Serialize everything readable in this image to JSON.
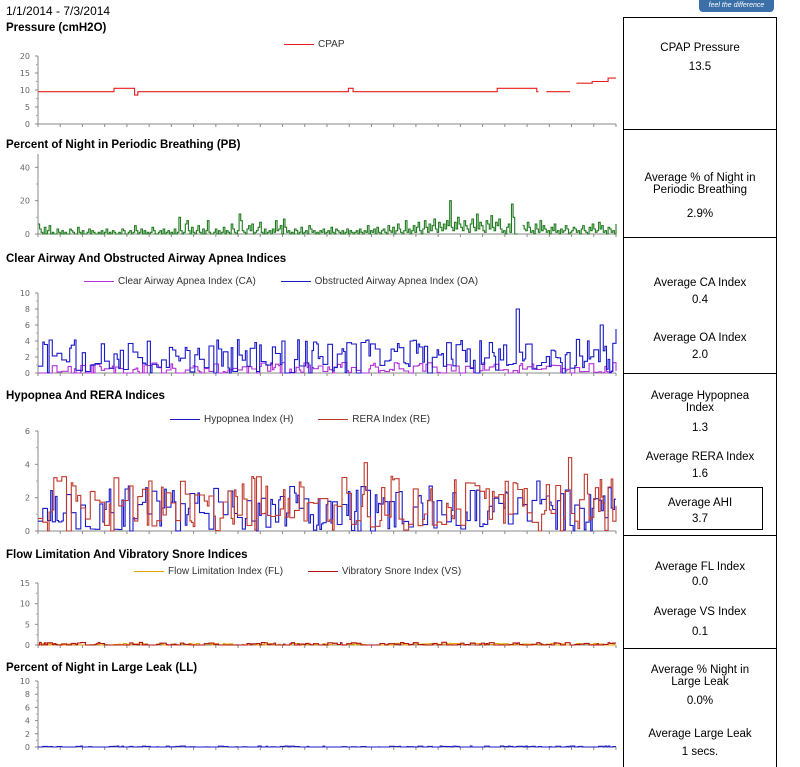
{
  "header": {
    "date_range": "1/1/2014 - 7/3/2014",
    "logo_text": "feel the difference"
  },
  "colors": {
    "cpap": "#e81c1c",
    "pb": "#1e7a1e",
    "ca": "#b430d8",
    "oa": "#1a1ac8",
    "h": "#1a1ac8",
    "re": "#c0392b",
    "fl": "#e8a400",
    "vs": "#b01010",
    "ll": "#1a1ac8"
  },
  "sections": {
    "pressure": {
      "title": "Pressure (cmH2O)",
      "legend": [
        "CPAP"
      ]
    },
    "pb": {
      "title": "Percent of Night in Periodic Breathing (PB)"
    },
    "apnea": {
      "title": "Clear Airway And Obstructed Airway Apnea Indices",
      "legend": [
        "Clear Airway Apnea Index (CA)",
        "Obstructed Airway Apnea Index (OA)"
      ]
    },
    "hyp": {
      "title": "Hypopnea And RERA Indices",
      "legend": [
        "Hypopnea Index (H)",
        "RERA Index (RE)"
      ]
    },
    "fl": {
      "title": "Flow Limitation And Vibratory Snore Indices",
      "legend": [
        "Flow Limitation Index (FL)",
        "Vibratory Snore Index (VS)"
      ]
    },
    "ll": {
      "title": "Percent of Night in Large Leak (LL)"
    }
  },
  "summary": {
    "cpap_pressure_label": "CPAP Pressure",
    "cpap_pressure_value": "13.5",
    "pb_label": "Average % of Night in Periodic Breathing",
    "pb_value": "2.9%",
    "ca_label": "Average CA Index",
    "ca_value": "0.4",
    "oa_label": "Average OA Index",
    "oa_value": "2.0",
    "h_label": "Average Hypopnea Index",
    "h_value": "1.3",
    "re_label": "Average RERA Index",
    "re_value": "1.6",
    "ahi_label": "Average AHI",
    "ahi_value": "3.7",
    "fl_label": "Average FL Index",
    "fl_value": "0.0",
    "vs_label": "Average VS Index",
    "vs_value": "0.1",
    "ll_pct_label": "Average % Night in Large Leak",
    "ll_pct_value": "0.0%",
    "ll_secs_label": "Average Large Leak",
    "ll_secs_value": "1 secs."
  },
  "chart_data": [
    {
      "id": "pressure",
      "type": "line",
      "ylim": [
        0,
        20
      ],
      "yticks": [
        0,
        5,
        10,
        15,
        20
      ],
      "series": [
        {
          "name": "CPAP",
          "color": "#e81c1c",
          "steps": [
            [
              0,
              9.5
            ],
            [
              48,
              10.5
            ],
            [
              61,
              8.5
            ],
            [
              63,
              9.5
            ],
            [
              196,
              10.5
            ],
            [
              199,
              9.5
            ],
            [
              214,
              9.5
            ],
            [
              232,
              9.5
            ],
            [
              245,
              9.5
            ],
            [
              270,
              9.5
            ],
            [
              280,
              9.5
            ],
            [
              290,
              10.5
            ],
            [
              310,
              10.5
            ],
            [
              315,
              9.5
            ],
            [
              325,
              9.5
            ],
            [
              340,
              12
            ],
            [
              350,
              12.5
            ],
            [
              360,
              13.5
            ],
            [
              366,
              13.5
            ]
          ]
        }
      ]
    },
    {
      "id": "pb",
      "type": "line",
      "ylim": [
        0,
        48
      ],
      "yticks": [
        0,
        20,
        40
      ],
      "series": [
        {
          "name": "",
          "color": "#1e7a1e",
          "values": [
            6,
            3,
            1,
            0,
            4,
            0,
            2,
            5,
            0,
            1,
            0,
            0,
            3,
            1,
            0,
            2,
            0,
            1,
            0,
            0,
            3,
            2,
            1,
            0,
            0,
            4,
            1,
            0,
            2,
            0,
            0,
            1,
            3,
            0,
            2,
            1,
            0,
            0,
            1,
            0,
            2,
            0,
            1,
            3,
            0,
            1,
            0,
            2,
            1,
            0,
            0,
            1,
            0,
            3,
            2,
            0,
            0,
            1,
            2,
            0,
            1,
            5,
            2,
            0,
            1,
            3,
            0,
            2,
            0,
            1,
            0,
            1,
            4,
            2,
            0,
            0,
            1,
            2,
            0,
            3,
            0,
            1,
            2,
            0,
            1,
            0,
            3,
            0,
            1,
            10,
            2,
            0,
            1,
            6,
            8,
            2,
            0,
            4,
            1,
            0,
            2,
            5,
            1,
            0,
            3,
            0,
            2,
            8,
            1,
            0,
            0,
            1,
            3,
            0,
            2,
            0,
            1,
            4,
            0,
            2,
            1,
            0,
            6,
            3,
            1,
            0,
            2,
            12,
            8,
            2,
            1,
            0,
            3,
            5,
            2,
            6,
            0,
            1,
            2,
            4,
            7,
            1,
            0,
            3,
            0,
            1,
            2,
            0,
            3,
            1,
            8,
            2,
            3,
            5,
            0,
            9,
            4,
            1,
            2,
            0,
            1,
            0,
            3,
            2,
            0,
            1,
            4,
            0,
            1,
            2,
            0,
            5,
            3,
            1,
            2,
            0,
            1,
            0,
            2,
            1,
            3,
            0,
            1,
            2,
            0,
            4,
            1,
            0,
            3,
            2,
            1,
            0,
            2,
            0,
            1,
            3,
            0,
            2,
            1,
            0,
            1,
            2,
            0,
            3,
            1,
            0,
            2,
            1,
            5,
            0,
            2,
            1,
            3,
            0,
            4,
            1,
            0,
            2,
            3,
            1,
            0,
            5,
            2,
            1,
            4,
            0,
            2,
            6,
            3,
            1,
            0,
            2,
            8,
            1,
            3,
            0,
            2,
            5,
            1,
            4,
            7,
            2,
            0,
            3,
            8,
            4,
            1,
            6,
            2,
            5,
            9,
            3,
            1,
            7,
            4,
            2,
            6,
            3,
            8,
            5,
            20,
            4,
            2,
            7,
            3,
            10,
            6,
            4,
            2,
            8,
            5,
            3,
            1,
            6,
            9,
            4,
            2,
            12,
            3,
            7,
            5,
            2,
            1,
            8,
            6,
            3,
            11,
            4,
            2,
            7,
            5,
            9,
            3,
            1,
            2,
            0,
            4,
            6,
            1,
            18,
            10,
            0,
            0,
            3,
            2,
            1,
            5,
            3,
            2,
            7,
            4,
            1,
            2,
            0,
            6,
            3,
            1,
            8,
            2,
            5,
            3,
            1,
            2,
            0,
            4,
            2,
            6,
            1,
            2,
            0,
            3,
            1,
            2,
            5,
            3,
            0,
            1,
            2,
            4,
            3,
            1,
            2,
            0,
            3,
            5,
            2,
            1,
            0,
            4,
            2,
            6,
            3,
            1,
            2,
            7,
            3,
            5,
            1,
            2,
            0,
            4,
            3,
            1,
            2,
            0,
            6,
            2,
            1
          ]
        }
      ]
    },
    {
      "id": "apnea",
      "type": "line",
      "ylim": [
        0,
        10
      ],
      "yticks": [
        0,
        2,
        4,
        6,
        8,
        10
      ],
      "series": [
        {
          "name": "Clear Airway Apnea Index (CA)",
          "color": "#b430d8",
          "seed": 11,
          "base": 0.4,
          "amp": 0.9
        },
        {
          "name": "Obstructed Airway Apnea Index (OA)",
          "color": "#1a1ac8",
          "seed": 7,
          "base": 2.0,
          "amp": 2.2,
          "spikes": [
            [
              83,
              3.2
            ],
            [
              114,
              3.0
            ],
            [
              235,
              4.0
            ],
            [
              285,
              3.8
            ],
            [
              302,
              8.0
            ],
            [
              340,
              4.2
            ],
            [
              355,
              6.0
            ],
            [
              365,
              5.5
            ]
          ]
        }
      ]
    },
    {
      "id": "hyp",
      "type": "line",
      "ylim": [
        0,
        6
      ],
      "yticks": [
        0,
        2,
        4,
        6
      ],
      "series": [
        {
          "name": "Hypopnea Index (H)",
          "color": "#1a1ac8",
          "seed": 23,
          "base": 1.3,
          "amp": 1.4,
          "spikes": [
            [
              315,
              3.0
            ],
            [
              360,
              2.6
            ],
            [
              366,
              4.8
            ]
          ]
        },
        {
          "name": "RERA Index (RE)",
          "color": "#c0392b",
          "seed": 41,
          "base": 1.6,
          "amp": 1.7,
          "spikes": [
            [
              10,
              3.2
            ],
            [
              70,
              3.0
            ],
            [
              206,
              4.1
            ],
            [
              300,
              2.9
            ],
            [
              335,
              4.4
            ],
            [
              345,
              3.4
            ]
          ]
        }
      ]
    },
    {
      "id": "fl",
      "type": "line",
      "ylim": [
        0,
        15
      ],
      "yticks": [
        0,
        5,
        10,
        15
      ],
      "series": [
        {
          "name": "Flow Limitation Index (FL)",
          "color": "#e8a400",
          "seed": 5,
          "base": 0.1,
          "amp": 0.3
        },
        {
          "name": "Vibratory Snore Index (VS)",
          "color": "#b01010",
          "seed": 9,
          "base": 0.15,
          "amp": 0.5
        }
      ]
    },
    {
      "id": "ll",
      "type": "line",
      "ylim": [
        0,
        10
      ],
      "yticks": [
        0,
        2,
        4,
        6,
        8,
        10
      ],
      "series": [
        {
          "name": "",
          "color": "#1a1ac8",
          "seed": 3,
          "base": 0.0,
          "amp": 0.15
        }
      ]
    }
  ]
}
